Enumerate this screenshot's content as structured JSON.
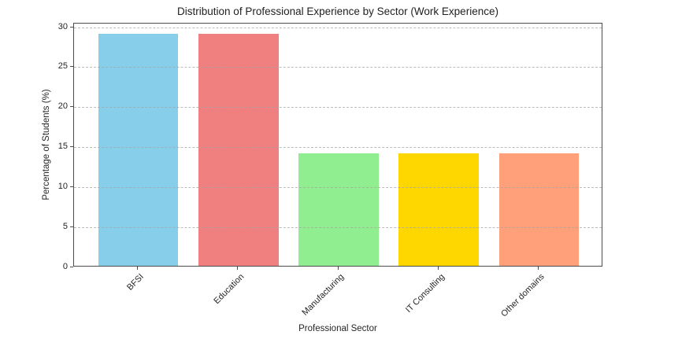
{
  "title": "Distribution of Professional Experience by Sector (Work Experience)",
  "chart_data": {
    "type": "bar",
    "title": "Distribution of Professional Experience by Sector (Work Experience)",
    "xlabel": "Professional Sector",
    "ylabel": "Percentage of Students (%)",
    "categories": [
      "BFSI",
      "Education",
      "Manufacturing",
      "IT Consulting",
      "Other domains"
    ],
    "values": [
      29,
      29,
      14,
      14,
      14
    ],
    "bar_colors": [
      "#87CEEB",
      "#F08080",
      "#90EE90",
      "#FFD700",
      "#FFA07A"
    ],
    "yticks": [
      0,
      5,
      10,
      15,
      20,
      25,
      30
    ],
    "ylim": [
      0,
      30.45
    ],
    "xlim": [
      -0.64,
      4.64
    ],
    "bar_width_fraction": 0.8,
    "grid": "horizontal dashed, drawn above bars",
    "legend": "none",
    "xtick_rotation_deg": 45
  },
  "colors": {
    "background": "#ffffff",
    "spine": "#4d4d4d",
    "grid": "#a6a6a6",
    "text": "#262626",
    "title_text": "#212121"
  }
}
